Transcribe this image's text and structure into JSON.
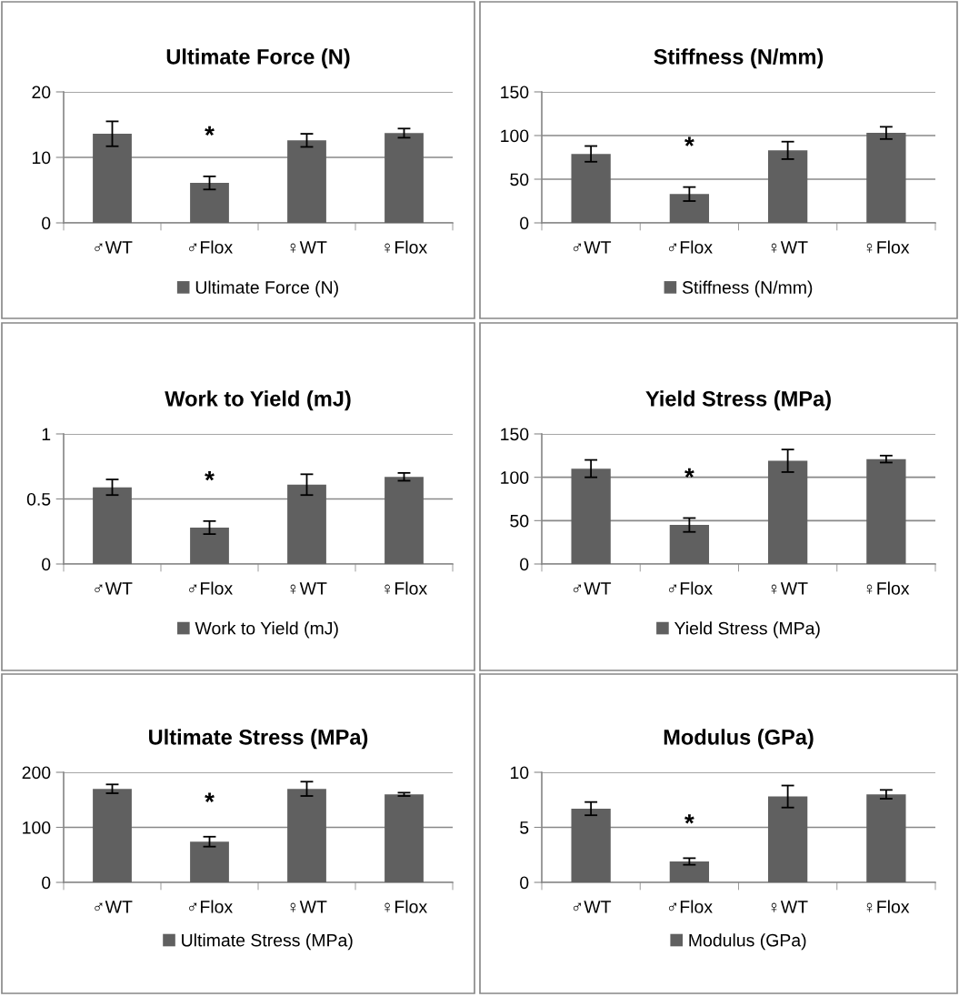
{
  "chart_data": [
    {
      "type": "bar",
      "title": "Ultimate Force (N)",
      "categories": [
        "♂WT",
        "♂Flox",
        "♀WT",
        "♀Flox"
      ],
      "series": [
        {
          "name": "Ultimate Force (N)",
          "color": "#606060",
          "values": [
            13.6,
            6.1,
            12.6,
            13.7
          ],
          "errors": [
            1.9,
            1.0,
            1.0,
            0.7
          ]
        }
      ],
      "ylim": [
        0,
        20
      ],
      "yticks": [
        0,
        10,
        20
      ],
      "grid": "y",
      "legend": "bottom",
      "annotations": [
        "*"
      ]
    },
    {
      "type": "bar",
      "title": "Stiffness (N/mm)",
      "categories": [
        "♂WT",
        "♂Flox",
        "♀WT",
        "♀Flox"
      ],
      "series": [
        {
          "name": "Stiffness (N/mm)",
          "color": "#606060",
          "values": [
            79,
            33,
            83,
            103
          ],
          "errors": [
            9,
            8,
            10,
            7
          ]
        }
      ],
      "ylim": [
        0,
        150
      ],
      "yticks": [
        0,
        50,
        100,
        150
      ],
      "grid": "y",
      "legend": "bottom",
      "annotations": [
        "*"
      ]
    },
    {
      "type": "bar",
      "title": "Work to Yield (mJ)",
      "categories": [
        "♂WT",
        "♂Flox",
        "♀WT",
        "♀Flox"
      ],
      "series": [
        {
          "name": "Work to Yield (mJ)",
          "color": "#606060",
          "values": [
            0.59,
            0.28,
            0.61,
            0.67
          ],
          "errors": [
            0.06,
            0.05,
            0.08,
            0.03
          ]
        }
      ],
      "ylim": [
        0,
        1
      ],
      "yticks": [
        0,
        0.5,
        1
      ],
      "grid": "y",
      "legend": "bottom",
      "annotations": [
        "*"
      ]
    },
    {
      "type": "bar",
      "title": "Yield Stress (MPa)",
      "categories": [
        "♂WT",
        "♂Flox",
        "♀WT",
        "♀Flox"
      ],
      "series": [
        {
          "name": "Yield Stress (MPa)",
          "color": "#606060",
          "values": [
            110,
            45,
            119,
            121
          ],
          "errors": [
            10,
            8,
            13,
            4
          ]
        }
      ],
      "ylim": [
        0,
        150
      ],
      "yticks": [
        0,
        50,
        100,
        150
      ],
      "grid": "y",
      "legend": "bottom",
      "annotations": [
        "*"
      ]
    },
    {
      "type": "bar",
      "title": "Ultimate Stress (MPa)",
      "categories": [
        "♂WT",
        "♂Flox",
        "♀WT",
        "♀Flox"
      ],
      "series": [
        {
          "name": "Ultimate Stress (MPa)",
          "color": "#606060",
          "values": [
            170,
            74,
            170,
            160
          ],
          "errors": [
            8,
            9,
            13,
            3
          ]
        }
      ],
      "ylim": [
        0,
        200
      ],
      "yticks": [
        0,
        100,
        200
      ],
      "grid": "y",
      "legend": "bottom",
      "annotations": [
        "*"
      ]
    },
    {
      "type": "bar",
      "title": "Modulus (GPa)",
      "categories": [
        "♂WT",
        "♂Flox",
        "♀WT",
        "♀Flox"
      ],
      "series": [
        {
          "name": "Modulus (GPa)",
          "color": "#606060",
          "values": [
            6.7,
            1.9,
            7.8,
            8.0
          ],
          "errors": [
            0.6,
            0.3,
            1.0,
            0.4
          ]
        }
      ],
      "ylim": [
        0,
        10
      ],
      "yticks": [
        0,
        5,
        10
      ],
      "grid": "y",
      "legend": "bottom",
      "annotations": [
        "*"
      ]
    }
  ]
}
